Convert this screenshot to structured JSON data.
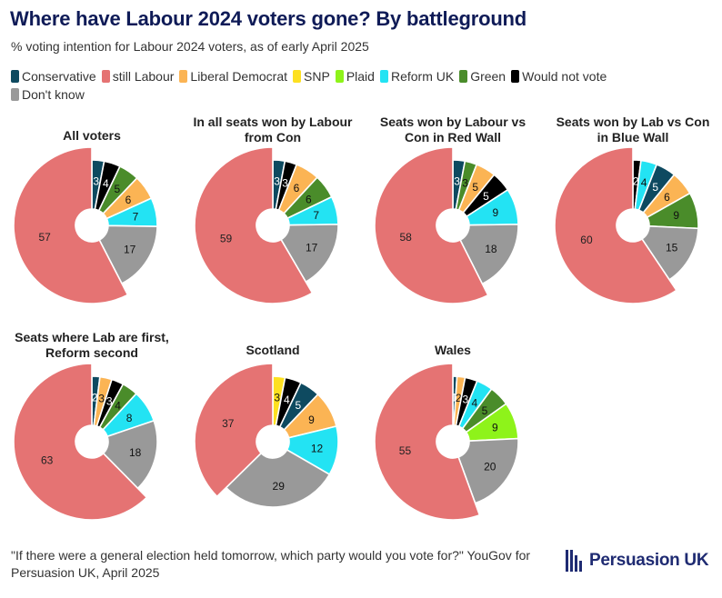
{
  "header": {
    "title": "Where have Labour 2024 voters gone? By battleground",
    "subtitle": "% voting intention for Labour 2024 voters, as of early April 2025"
  },
  "legend": [
    {
      "label": "Conservative",
      "color": "#0e4a60"
    },
    {
      "label": "still Labour",
      "color": "#e57373"
    },
    {
      "label": "Liberal Democrat",
      "color": "#fbb454"
    },
    {
      "label": "SNP",
      "color": "#fde021"
    },
    {
      "label": "Plaid",
      "color": "#8ef31a"
    },
    {
      "label": "Reform UK",
      "color": "#23e3f3"
    },
    {
      "label": "Green",
      "color": "#4a8c2a"
    },
    {
      "label": "Would not vote",
      "color": "#000000"
    },
    {
      "label": "Don't know",
      "color": "#999999"
    }
  ],
  "chart_data": [
    {
      "type": "pie",
      "title": "All voters",
      "slices": [
        {
          "label": "Conservative",
          "value": 3
        },
        {
          "label": "Would not vote",
          "value": 4
        },
        {
          "label": "Green",
          "value": 5
        },
        {
          "label": "Liberal Democrat",
          "value": 6
        },
        {
          "label": "Reform UK",
          "value": 7
        },
        {
          "label": "Don't know",
          "value": 17
        },
        {
          "label": "still Labour",
          "value": 57
        }
      ]
    },
    {
      "type": "pie",
      "title": "In all seats won by Labour from Con",
      "slices": [
        {
          "label": "Conservative",
          "value": 3
        },
        {
          "label": "Would not vote",
          "value": 3
        },
        {
          "label": "Liberal Democrat",
          "value": 6
        },
        {
          "label": "Green",
          "value": 6
        },
        {
          "label": "Reform UK",
          "value": 7
        },
        {
          "label": "Don't know",
          "value": 17
        },
        {
          "label": "still Labour",
          "value": 59
        }
      ]
    },
    {
      "type": "pie",
      "title": "Seats won by Labour vs Con in Red Wall",
      "slices": [
        {
          "label": "Conservative",
          "value": 3
        },
        {
          "label": "Green",
          "value": 3
        },
        {
          "label": "Liberal Democrat",
          "value": 5
        },
        {
          "label": "Would not vote",
          "value": 5
        },
        {
          "label": "Reform UK",
          "value": 9
        },
        {
          "label": "Don't know",
          "value": 18
        },
        {
          "label": "still Labour",
          "value": 58
        }
      ]
    },
    {
      "type": "pie",
      "title": "Seats won by Lab vs Con in Blue Wall",
      "slices": [
        {
          "label": "Would not vote",
          "value": 2
        },
        {
          "label": "Reform UK",
          "value": 4
        },
        {
          "label": "Conservative",
          "value": 5
        },
        {
          "label": "Liberal Democrat",
          "value": 6
        },
        {
          "label": "Green",
          "value": 9
        },
        {
          "label": "Don't know",
          "value": 15
        },
        {
          "label": "still Labour",
          "value": 60
        }
      ]
    },
    {
      "type": "pie",
      "title": "Seats where Lab are first, Reform second",
      "slices": [
        {
          "label": "Conservative",
          "value": 2
        },
        {
          "label": "Liberal Democrat",
          "value": 3
        },
        {
          "label": "Would not vote",
          "value": 3
        },
        {
          "label": "Green",
          "value": 4
        },
        {
          "label": "Reform UK",
          "value": 8
        },
        {
          "label": "Don't know",
          "value": 18
        },
        {
          "label": "still Labour",
          "value": 63
        }
      ]
    },
    {
      "type": "pie",
      "title": "Scotland",
      "slices": [
        {
          "label": "SNP",
          "value": 3
        },
        {
          "label": "Would not vote",
          "value": 4
        },
        {
          "label": "Conservative",
          "value": 5
        },
        {
          "label": "Liberal Democrat",
          "value": 9
        },
        {
          "label": "Reform UK",
          "value": 12
        },
        {
          "label": "Don't know",
          "value": 29
        },
        {
          "label": "still Labour",
          "value": 37
        }
      ]
    },
    {
      "type": "pie",
      "title": "Wales",
      "slices": [
        {
          "label": "Conservative",
          "value": 1
        },
        {
          "label": "Liberal Democrat",
          "value": 2
        },
        {
          "label": "Would not vote",
          "value": 3
        },
        {
          "label": "Reform UK",
          "value": 4
        },
        {
          "label": "Green",
          "value": 5
        },
        {
          "label": "Plaid",
          "value": 9
        },
        {
          "label": "Don't know",
          "value": 20
        },
        {
          "label": "still Labour",
          "value": 55
        }
      ]
    }
  ],
  "footer": {
    "source": "\"If there were a general election held tomorrow, which party would you vote for?\" YouGov for Persuasion UK, April 2025",
    "brand": "Persuasion UK"
  }
}
